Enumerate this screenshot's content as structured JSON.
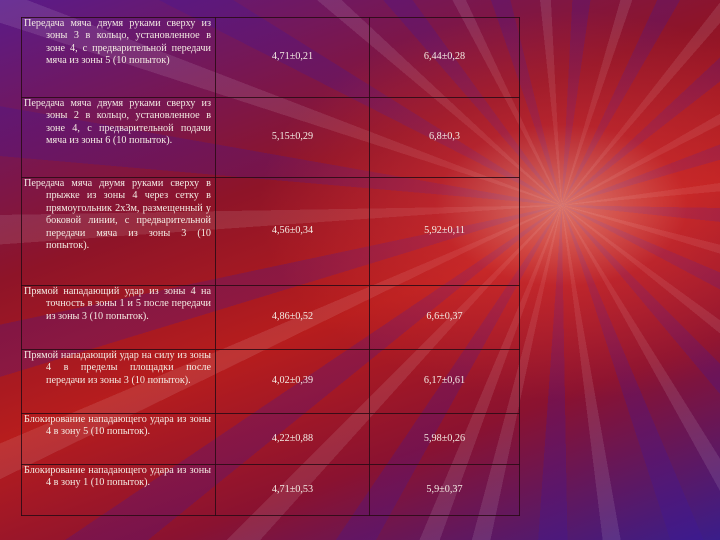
{
  "table": {
    "rows": [
      {
        "exercise": "Передача мяча двумя руками сверху из зоны 3 в кольцо, установленное в зоне 4, с предварительной передачи мяча из зоны 5 (10 попыток)",
        "col1": "4,71±0,21",
        "col2": "6,44±0,28"
      },
      {
        "exercise": "Передача мяча двумя руками сверху из зоны 2 в кольцо, установленное в зоне 4, с предварительной подачи мяча из зоны 6 (10 попыток).",
        "col1": "5,15±0,29",
        "col2": "6,8±0,3"
      },
      {
        "exercise": "Передача мяча двумя руками сверху в прыжке из зоны 4 через сетку в прямоугольник 2х3м, размещенный у боковой линии, с предварительной передачи мяча из зоны 3 (10 попыток).",
        "col1": "4,56±0,34",
        "col2": "5,92±0,11"
      },
      {
        "exercise": "Прямой нападающий удар из зоны 4 на точность в зоны 1 и 5 после передачи из зоны 3 (10 попыток).",
        "col1": "4,86±0,52",
        "col2": "6,6±0,37"
      },
      {
        "exercise": "Прямой нападающий удар на силу из зоны 4 в пределы площадки после передачи из зоны 3 (10 попыток).",
        "col1": "4,02±0,39",
        "col2": "6,17±0,61"
      },
      {
        "exercise": "Блокирование нападающего удара из зоны 4 в зону 5 (10 попыток).",
        "col1": "4,22±0,88",
        "col2": "5,98±0,26"
      },
      {
        "exercise": "Блокирование нападающего удара из зоны 4 в зону 1 (10 попыток).",
        "col1": "4,71±0,53",
        "col2": "5,9±0,37"
      }
    ]
  },
  "colors": {
    "background": "#8a1a2a",
    "text": "#f4ece4",
    "grid": "#28100f"
  }
}
